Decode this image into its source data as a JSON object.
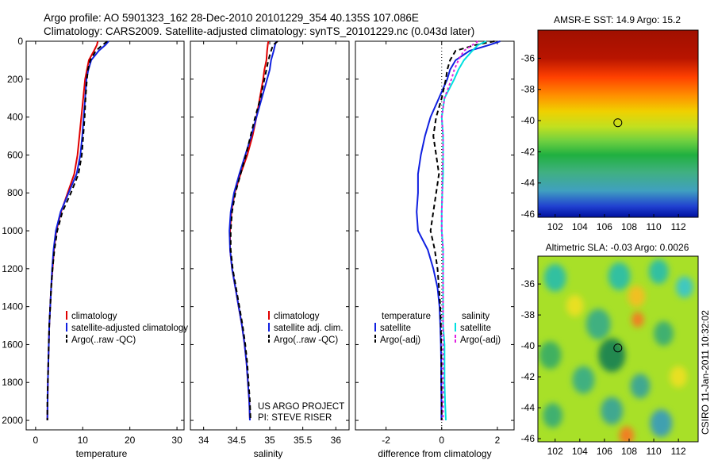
{
  "header": {
    "line1": "Argo profile: AO 5901323_162 28-Dec-2010 20101229_354 40.135S 107.086E",
    "line2": "Climatology: CARS2009. Satellite-adjusted climatology: synTS_20101229.nc (0.043d later)"
  },
  "colors": {
    "climatology": "#e00000",
    "satellite": "#1020e0",
    "argo": "#000000",
    "sal_satellite": "#00e0e0",
    "sal_argo": "#e020e0"
  },
  "chart_data": [
    {
      "type": "line",
      "id": "temperature",
      "xlabel": "temperature",
      "ylabel": "",
      "xlim": [
        -2,
        31.5
      ],
      "ylim": [
        2050,
        0
      ],
      "xticks": [
        0,
        10,
        20,
        30
      ],
      "yticks": [
        0,
        200,
        400,
        600,
        800,
        1000,
        1200,
        1400,
        1600,
        1800,
        2000
      ],
      "depth": [
        0,
        20,
        50,
        100,
        150,
        200,
        300,
        400,
        500,
        600,
        700,
        800,
        900,
        1000,
        1100,
        1200,
        1300,
        1400,
        1500,
        1600,
        1700,
        1800,
        1900,
        2000
      ],
      "series": [
        {
          "name": "climatology",
          "color_key": "climatology",
          "dash": "",
          "values": [
            13.2,
            13.0,
            12.4,
            11.3,
            10.9,
            10.5,
            10.1,
            9.7,
            9.3,
            8.9,
            8.2,
            6.8,
            5.4,
            4.4,
            3.9,
            3.6,
            3.3,
            3.1,
            2.9,
            2.8,
            2.7,
            2.6,
            2.55,
            2.5
          ]
        },
        {
          "name": "satellite-adjusted climatology",
          "color_key": "satellite",
          "dash": "",
          "values": [
            15.5,
            14.8,
            13.4,
            11.8,
            11.2,
            10.8,
            10.5,
            10.2,
            9.9,
            9.5,
            8.7,
            7.0,
            5.3,
            4.3,
            3.8,
            3.5,
            3.3,
            3.1,
            2.9,
            2.8,
            2.7,
            2.6,
            2.55,
            2.5
          ]
        },
        {
          "name": "Argo(..raw -QC)",
          "color_key": "argo",
          "dash": "6,4",
          "values": [
            15.2,
            14.2,
            12.8,
            11.6,
            11.1,
            10.9,
            10.6,
            10.4,
            10.1,
            9.8,
            9.1,
            7.5,
            5.7,
            4.6,
            4.0,
            3.6,
            3.3,
            3.1,
            2.9,
            2.8,
            2.7,
            2.6,
            2.5,
            2.5
          ]
        }
      ],
      "legend": [
        {
          "label": "climatology",
          "color_key": "climatology",
          "dash": ""
        },
        {
          "label": "satellite-adjusted climatology",
          "color_key": "satellite",
          "dash": ""
        },
        {
          "label": "Argo(..raw -QC)",
          "color_key": "argo",
          "dash": "dash"
        }
      ]
    },
    {
      "type": "line",
      "id": "salinity",
      "xlabel": "salinity",
      "ylabel": "",
      "xlim": [
        33.8,
        36.2
      ],
      "ylim": [
        2050,
        0
      ],
      "xticks": [
        34,
        34.5,
        35,
        35.5,
        36
      ],
      "yticks": [
        0,
        200,
        400,
        600,
        800,
        1000,
        1200,
        1400,
        1600,
        1800,
        2000
      ],
      "depth": [
        0,
        20,
        50,
        100,
        150,
        200,
        300,
        400,
        500,
        600,
        700,
        800,
        900,
        1000,
        1100,
        1200,
        1300,
        1400,
        1500,
        1600,
        1700,
        1800,
        1900,
        2000
      ],
      "series": [
        {
          "name": "climatology",
          "color_key": "climatology",
          "dash": "",
          "values": [
            34.98,
            34.97,
            34.96,
            34.95,
            34.92,
            34.9,
            34.85,
            34.8,
            34.74,
            34.66,
            34.56,
            34.47,
            34.42,
            34.4,
            34.4,
            34.43,
            34.48,
            34.53,
            34.58,
            34.62,
            34.65,
            34.67,
            34.69,
            34.7
          ]
        },
        {
          "name": "satellite adj. clim.",
          "color_key": "satellite",
          "dash": "",
          "values": [
            35.1,
            35.08,
            35.06,
            35.02,
            35.0,
            34.96,
            34.88,
            34.8,
            34.72,
            34.63,
            34.54,
            34.46,
            34.41,
            34.39,
            34.4,
            34.43,
            34.48,
            34.53,
            34.58,
            34.62,
            34.65,
            34.67,
            34.69,
            34.7
          ]
        },
        {
          "name": "Argo(..raw -QC)",
          "color_key": "argo",
          "dash": "6,4",
          "values": [
            35.12,
            35.05,
            35.02,
            34.98,
            34.95,
            34.92,
            34.86,
            34.78,
            34.71,
            34.64,
            34.56,
            34.48,
            34.43,
            34.41,
            34.41,
            34.44,
            34.49,
            34.54,
            34.59,
            34.63,
            34.66,
            34.68,
            34.7,
            34.71
          ]
        }
      ],
      "legend": [
        {
          "label": "climatology",
          "color_key": "climatology",
          "dash": ""
        },
        {
          "label": "satellite adj. clim.",
          "color_key": "satellite",
          "dash": ""
        },
        {
          "label": "Argo(..raw -QC)",
          "color_key": "argo",
          "dash": "dash"
        }
      ],
      "annotation": [
        "US ARGO PROJECT",
        "PI: STEVE RISER"
      ]
    },
    {
      "type": "line",
      "id": "difference",
      "xlabel": "difference from climatology",
      "ylabel": "",
      "xlim": [
        -3.1,
        2.6
      ],
      "ylim": [
        2050,
        0
      ],
      "xticks": [
        -2,
        0,
        2
      ],
      "yticks": [
        0,
        200,
        400,
        600,
        800,
        1000,
        1200,
        1400,
        1600,
        1800,
        2000
      ],
      "zero_line": 0,
      "depth": [
        0,
        20,
        50,
        100,
        150,
        200,
        300,
        400,
        500,
        600,
        700,
        800,
        900,
        1000,
        1100,
        1200,
        1300,
        1400,
        1500,
        1600,
        1700,
        1800,
        1900,
        2000
      ],
      "series": [
        {
          "name": "temperature satellite",
          "color_key": "satellite",
          "dash": "",
          "values": [
            2.1,
            1.7,
            1.0,
            0.5,
            0.3,
            0.2,
            -0.1,
            -0.4,
            -0.6,
            -0.75,
            -0.85,
            -0.85,
            -0.9,
            -0.85,
            -0.5,
            -0.3,
            -0.15,
            -0.08,
            -0.05,
            -0.03,
            -0.02,
            -0.02,
            -0.01,
            -0.01
          ]
        },
        {
          "name": "temperature Argo(-adj)",
          "color_key": "argo",
          "dash": "6,4",
          "values": [
            1.9,
            1.2,
            0.5,
            0.3,
            0.2,
            0.15,
            0.0,
            -0.2,
            -0.3,
            -0.2,
            -0.1,
            -0.2,
            -0.3,
            -0.4,
            -0.25,
            -0.15,
            -0.1,
            -0.05,
            -0.03,
            -0.02,
            -0.01,
            -0.01,
            0.0,
            0.0
          ]
        },
        {
          "name": "salinity satellite",
          "color_key": "sal_satellite",
          "dash": "",
          "values": [
            1.6,
            1.3,
            1.1,
            0.8,
            0.6,
            0.45,
            0.1,
            0.0,
            0.05,
            0.05,
            0.05,
            0.02,
            0.0,
            0.0,
            0.05,
            0.05,
            0.05,
            0.05,
            0.05,
            0.1,
            0.1,
            0.1,
            0.12,
            0.15
          ]
        },
        {
          "name": "salinity Argo(-adj)",
          "color_key": "sal_argo",
          "dash": "3,3",
          "values": [
            1.3,
            1.1,
            0.8,
            0.6,
            0.45,
            0.35,
            0.1,
            0.0,
            0.05,
            0.05,
            0.02,
            0.02,
            0.0,
            0.0,
            0.05,
            0.05,
            0.05,
            0.05,
            0.05,
            0.05,
            0.05,
            0.05,
            0.05,
            0.05
          ]
        }
      ],
      "legend_groups": [
        {
          "title": "temperature",
          "items": [
            {
              "label": "satellite",
              "color_key": "satellite",
              "dash": ""
            },
            {
              "label": "Argo(-adj)",
              "color_key": "argo",
              "dash": "dash"
            }
          ]
        },
        {
          "title": "salinity",
          "items": [
            {
              "label": "satellite",
              "color_key": "sal_satellite",
              "dash": ""
            },
            {
              "label": "Argo(-adj)",
              "color_key": "sal_argo",
              "dash": "dash"
            }
          ]
        }
      ]
    },
    {
      "type": "heatmap",
      "id": "sst",
      "title": "AMSR-E SST: 14.9 Argo: 15.2",
      "xlim": [
        100.6,
        113.6
      ],
      "ylim": [
        -46.2,
        -34.2
      ],
      "xticks": [
        102,
        104,
        106,
        108,
        110,
        112
      ],
      "yticks": [
        -36,
        -38,
        -40,
        -42,
        -44,
        -46
      ],
      "marker": {
        "lon": 107.086,
        "lat": -40.135
      },
      "color_bands": [
        {
          "lat": -34.2,
          "color": "#a01000"
        },
        {
          "lat": -36.0,
          "color": "#b81400"
        },
        {
          "lat": -37.2,
          "color": "#ff4000"
        },
        {
          "lat": -38.4,
          "color": "#ff9000"
        },
        {
          "lat": -39.4,
          "color": "#f0d000"
        },
        {
          "lat": -40.4,
          "color": "#c0e020"
        },
        {
          "lat": -41.3,
          "color": "#70d040"
        },
        {
          "lat": -42.2,
          "color": "#20b040"
        },
        {
          "lat": -43.3,
          "color": "#40b080"
        },
        {
          "lat": -44.5,
          "color": "#40a0c0"
        },
        {
          "lat": -45.5,
          "color": "#2040d0"
        },
        {
          "lat": -46.2,
          "color": "#0010a0"
        }
      ]
    },
    {
      "type": "heatmap",
      "id": "sla",
      "title": "Altimetric SLA: -0.03 Argo: 0.0026",
      "xlim": [
        100.6,
        113.6
      ],
      "ylim": [
        -46.2,
        -34.2
      ],
      "xticks": [
        102,
        104,
        106,
        108,
        110,
        112
      ],
      "yticks": [
        -36,
        -38,
        -40,
        -42,
        -44,
        -46
      ],
      "marker": {
        "lon": 107.086,
        "lat": -40.135
      },
      "background": "#a8e028",
      "blobs": [
        {
          "lon": 102.0,
          "lat": -35.6,
          "r": 0.9,
          "color": "#30c0a0"
        },
        {
          "lon": 107.2,
          "lat": -35.5,
          "r": 0.9,
          "color": "#30c0a0"
        },
        {
          "lon": 110.4,
          "lat": -35.2,
          "r": 0.8,
          "color": "#30c0a0"
        },
        {
          "lon": 112.5,
          "lat": -36.2,
          "r": 0.7,
          "color": "#40c8c0"
        },
        {
          "lon": 103.6,
          "lat": -37.4,
          "r": 0.7,
          "color": "#e8e020"
        },
        {
          "lon": 108.6,
          "lat": -36.8,
          "r": 0.7,
          "color": "#f0c020"
        },
        {
          "lon": 105.5,
          "lat": -38.6,
          "r": 1.0,
          "color": "#40b080"
        },
        {
          "lon": 101.6,
          "lat": -40.6,
          "r": 0.9,
          "color": "#40b060"
        },
        {
          "lon": 106.6,
          "lat": -40.6,
          "r": 1.1,
          "color": "#208850"
        },
        {
          "lon": 108.7,
          "lat": -38.3,
          "r": 0.5,
          "color": "#f08020"
        },
        {
          "lon": 110.8,
          "lat": -39.2,
          "r": 0.8,
          "color": "#40b070"
        },
        {
          "lon": 104.3,
          "lat": -42.2,
          "r": 0.9,
          "color": "#40b080"
        },
        {
          "lon": 108.9,
          "lat": -42.6,
          "r": 0.8,
          "color": "#40a890"
        },
        {
          "lon": 112.0,
          "lat": -42.0,
          "r": 0.7,
          "color": "#e8e020"
        },
        {
          "lon": 101.8,
          "lat": -44.5,
          "r": 0.8,
          "color": "#40b070"
        },
        {
          "lon": 106.6,
          "lat": -44.2,
          "r": 0.9,
          "color": "#40a890"
        },
        {
          "lon": 110.6,
          "lat": -45.0,
          "r": 0.9,
          "color": "#40a0b0"
        },
        {
          "lon": 107.8,
          "lat": -45.8,
          "r": 0.6,
          "color": "#f08020"
        }
      ]
    }
  ],
  "side_text": "CSIRO 11-Jan-2011 10:32:02"
}
